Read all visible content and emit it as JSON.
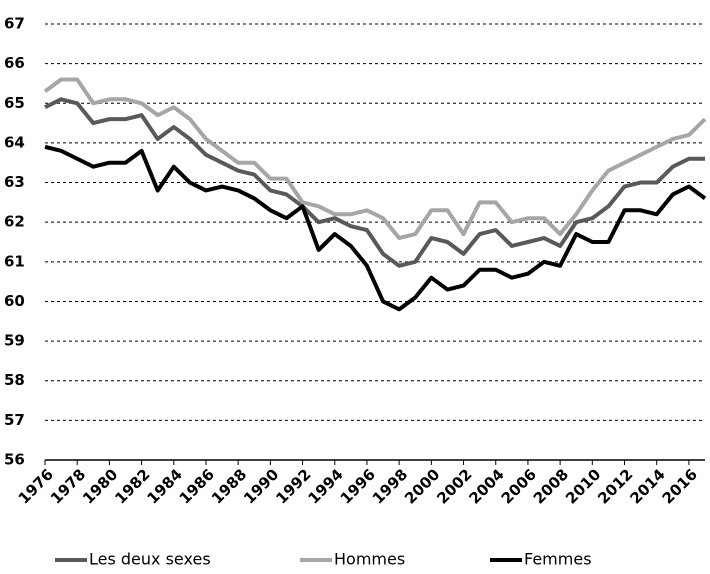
{
  "chart_data": {
    "type": "line",
    "x": [
      1976,
      1977,
      1978,
      1979,
      1980,
      1981,
      1982,
      1983,
      1984,
      1985,
      1986,
      1987,
      1988,
      1989,
      1990,
      1991,
      1992,
      1993,
      1994,
      1995,
      1996,
      1997,
      1998,
      1999,
      2000,
      2001,
      2002,
      2003,
      2004,
      2005,
      2006,
      2007,
      2008,
      2009,
      2010,
      2011,
      2012,
      2013,
      2014,
      2015,
      2016,
      2017
    ],
    "series": [
      {
        "name": "Les deux sexes",
        "color": "#595959",
        "values": [
          64.9,
          65.1,
          65.0,
          64.5,
          64.6,
          64.6,
          64.7,
          64.1,
          64.4,
          64.1,
          63.7,
          63.5,
          63.3,
          63.2,
          62.8,
          62.7,
          62.4,
          62.0,
          62.1,
          61.9,
          61.8,
          61.2,
          60.9,
          61.0,
          61.6,
          61.5,
          61.2,
          61.7,
          61.8,
          61.4,
          61.5,
          61.6,
          61.4,
          62.0,
          62.1,
          62.4,
          62.9,
          63.0,
          63.0,
          63.4,
          63.6,
          63.6
        ]
      },
      {
        "name": "Hommes",
        "color": "#a6a6a6",
        "values": [
          65.3,
          65.6,
          65.6,
          65.0,
          65.1,
          65.1,
          65.0,
          64.7,
          64.9,
          64.6,
          64.1,
          63.8,
          63.5,
          63.5,
          63.1,
          63.1,
          62.5,
          62.4,
          62.2,
          62.2,
          62.3,
          62.1,
          61.6,
          61.7,
          62.3,
          62.3,
          61.7,
          62.5,
          62.5,
          62.0,
          62.1,
          62.1,
          61.7,
          62.2,
          62.8,
          63.3,
          63.5,
          63.7,
          63.9,
          64.1,
          64.2,
          64.6
        ]
      },
      {
        "name": "Femmes",
        "color": "#000000",
        "values": [
          63.9,
          63.8,
          63.6,
          63.4,
          63.5,
          63.5,
          63.8,
          62.8,
          63.4,
          63.0,
          62.8,
          62.9,
          62.8,
          62.6,
          62.3,
          62.1,
          62.4,
          61.3,
          61.7,
          61.4,
          60.9,
          60.0,
          59.8,
          60.1,
          60.6,
          60.3,
          60.4,
          60.8,
          60.8,
          60.6,
          60.7,
          61.0,
          60.9,
          61.7,
          61.5,
          61.5,
          62.3,
          62.3,
          62.2,
          62.7,
          62.9,
          62.6
        ]
      }
    ],
    "xlim": [
      1976,
      2017
    ],
    "xticks": [
      1976,
      1978,
      1980,
      1982,
      1984,
      1986,
      1988,
      1990,
      1992,
      1994,
      1996,
      1998,
      2000,
      2002,
      2004,
      2006,
      2008,
      2010,
      2012,
      2014,
      2016
    ],
    "ylim": [
      56,
      67
    ],
    "yticks": [
      56,
      57,
      58,
      59,
      60,
      61,
      62,
      63,
      64,
      65,
      66,
      67
    ],
    "grid": true,
    "legend": "bottom"
  }
}
